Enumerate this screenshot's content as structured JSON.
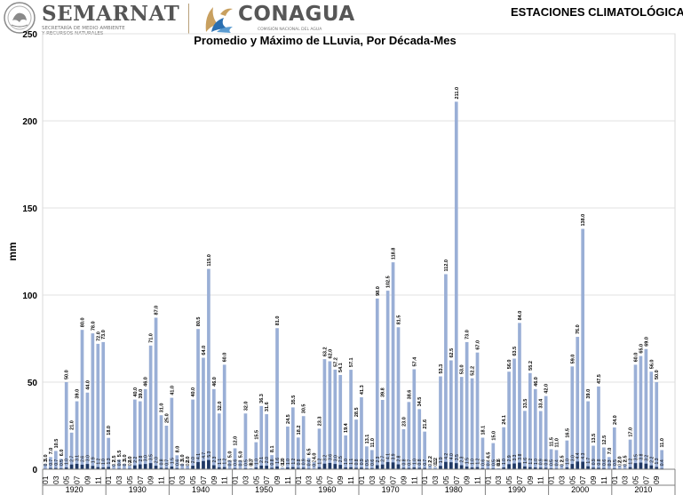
{
  "header": {
    "semarnat_name": "SEMARNAT",
    "semarnat_subtitle_1": "SECRETARÍA DE MEDIO AMBIENTE",
    "semarnat_subtitle_2": "Y RECURSOS NATURALES",
    "conagua_name": "CONAGUA",
    "conagua_subtitle": "COMISIÓN NACIONAL DEL AGUA",
    "page_heading": "ESTACIONES CLIMATOLÓGICAS"
  },
  "colors": {
    "series_max": "#9aafd6",
    "series_avg": "#1f3864",
    "grid": "#e0e0e0",
    "axis": "#7f7f7f"
  },
  "chart_data": {
    "type": "bar",
    "title": "Promedio y Máximo de LLuvia, Por Década-Mes",
    "ylabel": "mm",
    "xlabel": "",
    "ylim": [
      0,
      250
    ],
    "yticks": [
      0,
      50,
      100,
      150,
      200,
      250
    ],
    "grid": true,
    "legend": "none",
    "month_ticks": [
      "01",
      "03",
      "05",
      "07",
      "09",
      "11"
    ],
    "decades": [
      "1920",
      "1930",
      "1940",
      "1950",
      "1960",
      "1970",
      "1980",
      "1990",
      "2000",
      "2010"
    ],
    "series": [
      {
        "name": "Máximo",
        "values": [
          [
            3.0,
            7.0,
            10.5,
            6.0,
            50.0,
            21.0,
            39.0,
            80.0,
            44.0,
            78.0,
            72.0,
            73.0
          ],
          [
            18.0,
            2.5,
            5.5,
            3.0,
            2.0,
            40.0,
            39.0,
            46.0,
            71.0,
            87.0,
            31.0,
            25.0
          ],
          [
            41.0,
            8.0,
            3.0,
            2.0,
            40.0,
            80.5,
            64.0,
            115.0,
            46.0,
            32.0,
            60.0,
            5.0
          ],
          [
            12.0,
            5.0,
            32.0,
            0.7,
            15.5,
            36.3,
            31.6,
            8.1,
            81.0,
            1.0,
            24.5,
            35.5
          ],
          [
            18.2,
            30.5,
            6.5,
            4.0,
            23.3,
            63.2,
            62.0,
            57.2,
            54.1,
            19.4,
            57.1,
            28.5
          ],
          [
            41.3,
            13.1,
            11.0,
            98.0,
            39.8,
            102.5,
            118.8,
            81.5,
            23.0,
            38.6,
            57.4,
            34.5
          ],
          [
            21.6,
            2.2,
            1.2,
            53.3,
            112.0,
            62.5,
            211.0,
            53.0,
            73.0,
            52.2,
            67.0,
            18.1
          ],
          [
            4.5,
            15.0,
            0.6,
            24.1,
            56.0,
            63.5,
            84.0,
            33.5,
            55.2,
            46.0,
            33.4,
            42.0
          ],
          [
            11.5,
            11.0,
            2.5,
            16.5,
            59.0,
            76.0,
            138.0,
            39.0,
            13.5,
            47.5,
            12.5,
            7.0
          ],
          [
            24.0,
            2.0,
            2.5,
            17.0,
            60.0,
            65.0,
            69.0,
            56.0,
            50.0,
            11.0
          ]
        ]
      },
      {
        "name": "Promedio",
        "values": [
          [
            0.3,
            0.7,
            0.7,
            0.5,
            1.0,
            2.7,
            3.1,
            2.6,
            3.0,
            1.9,
            1.2,
            1.0
          ],
          [
            1.3,
            0.2,
            0.4,
            0.3,
            0.4,
            2.2,
            2.8,
            3.0,
            3.5,
            2.0,
            0.8,
            0.7
          ],
          [
            1.5,
            0.6,
            0.3,
            0.3,
            2.0,
            4.1,
            4.7,
            5.3,
            2.3,
            1.1,
            1.2,
            0.3
          ],
          [
            0.6,
            0.3,
            0.5,
            0.2,
            1.0,
            2.1,
            2.0,
            0.8,
            1.6,
            0.2,
            1.0,
            1.2
          ],
          [
            0.8,
            0.9,
            0.4,
            0.2,
            1.2,
            3.2,
            3.6,
            3.0,
            2.5,
            1.0,
            1.1,
            0.8
          ],
          [
            0.9,
            0.5,
            0.6,
            2.3,
            2.7,
            4.1,
            3.9,
            2.8,
            0.8,
            0.7,
            1.0,
            0.8
          ],
          [
            0.7,
            0.2,
            0.2,
            1.9,
            4.2,
            4.0,
            3.5,
            2.3,
            1.5,
            1.0,
            1.2,
            0.6
          ],
          [
            0.4,
            0.5,
            0.1,
            1.0,
            2.9,
            3.3,
            3.8,
            1.6,
            1.2,
            1.0,
            0.9,
            0.8
          ],
          [
            0.5,
            0.4,
            0.2,
            1.0,
            3.0,
            4.4,
            4.3,
            1.7,
            0.9,
            0.8,
            0.6,
            0.3
          ],
          [
            0.5,
            0.2,
            0.2,
            1.2,
            3.5,
            3.8,
            3.2,
            2.2,
            1.3,
            0.4
          ]
        ]
      }
    ]
  }
}
